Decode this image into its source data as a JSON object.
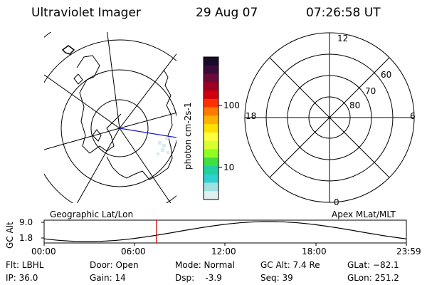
{
  "header": {
    "title": "Ultraviolet Imager",
    "date": "29 Aug 07",
    "time": "07:26:58 UT"
  },
  "colorbar": {
    "unit_label": "photon cm-2s-1",
    "ticks": [
      "100",
      "10"
    ],
    "colors": [
      "#1a0a2a",
      "#3a0a3a",
      "#6a0a3a",
      "#a00020",
      "#d00010",
      "#ff3000",
      "#ff7a00",
      "#ffb000",
      "#ffe000",
      "#ffff40",
      "#d8ff30",
      "#90ff20",
      "#40e040",
      "#20d0a0",
      "#30d0d0",
      "#a0e0e0",
      "#e0f0f0"
    ]
  },
  "right_plot": {
    "mlt_labels": {
      "top": "12",
      "left": "18",
      "right": "6",
      "bottom": "0"
    },
    "lat_labels": [
      "60",
      "70",
      "80"
    ]
  },
  "timeline": {
    "left_title": "Geographic Lat/Lon",
    "right_title": "Apex MLat/MLT",
    "ylabel": "GC Alt",
    "y_ticks": [
      "9.0",
      "1.8"
    ],
    "x_ticks": [
      "00:00",
      "06:00",
      "12:00",
      "18:00",
      "23:59"
    ],
    "current_time_fraction": 0.31,
    "marker_color": "#cc0000"
  },
  "info": {
    "flt": "Flt: LBHL",
    "ip": "IP: 36.0",
    "door": "Door: Open",
    "gain": "Gain: 14",
    "mode": "Mode: Normal",
    "dsp": "Dsp:    -3.9",
    "gcalt": "GC Alt: 7.4 Re",
    "seq": "Seq: 39",
    "glat": "GLat: −82.1",
    "glon": "GLon: 251.2"
  }
}
